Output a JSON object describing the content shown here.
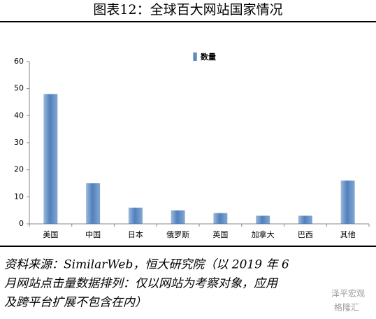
{
  "chart_data": {
    "type": "bar",
    "title": "图表12：全球百大网站国家情况",
    "categories": [
      "美国",
      "中国",
      "日本",
      "俄罗斯",
      "英国",
      "加拿大",
      "巴西",
      "其他"
    ],
    "series": [
      {
        "name": "数量",
        "color": "#4f81bd",
        "values": [
          48,
          15,
          6,
          5,
          4,
          3,
          3,
          16
        ]
      }
    ],
    "ylim": [
      0,
      60
    ],
    "yticks": [
      0,
      10,
      20,
      30,
      40,
      50,
      60
    ],
    "grid": false,
    "source": [
      "资料来源：SimilarWeb，恒大研究院（以 2019 年 6",
      "月网站点击量数据排列：仅以网站为考察对象，应用",
      "及跨平台扩展不包含在内）"
    ],
    "watermark": [
      "泽平宏观",
      "格隆汇"
    ]
  }
}
